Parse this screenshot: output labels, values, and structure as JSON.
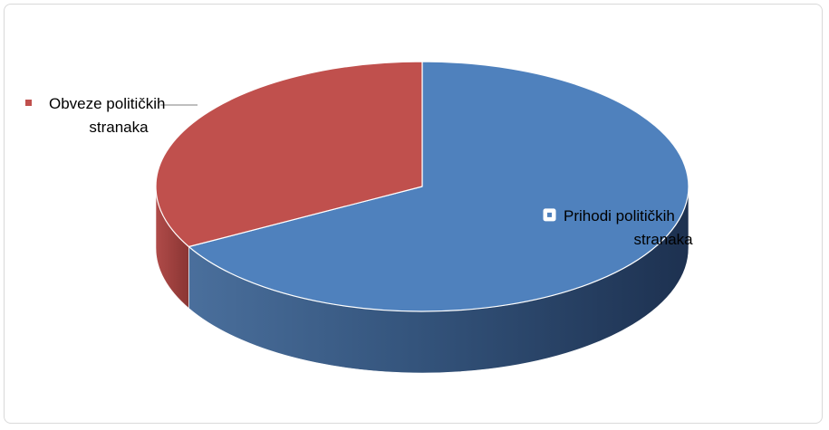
{
  "chart_data": {
    "type": "pie",
    "style": "3d",
    "title": "",
    "categories": [
      "Prihodi političkih stranaka",
      "Obveze političkih stranaka"
    ],
    "values": [
      67,
      33
    ],
    "colors": {
      "Prihodi političkih stranaka": "#4f81bd",
      "Obveze političkih stranaka": "#c0504d"
    },
    "labels": [
      {
        "series_index": 0,
        "lines": [
          "Prihodi političkih",
          "stranaka"
        ],
        "marker": "square-outline"
      },
      {
        "series_index": 1,
        "lines": [
          "Obveze političkih",
          "stranaka"
        ],
        "marker": "square-filled"
      }
    ],
    "legend": "none",
    "grid": false
  }
}
